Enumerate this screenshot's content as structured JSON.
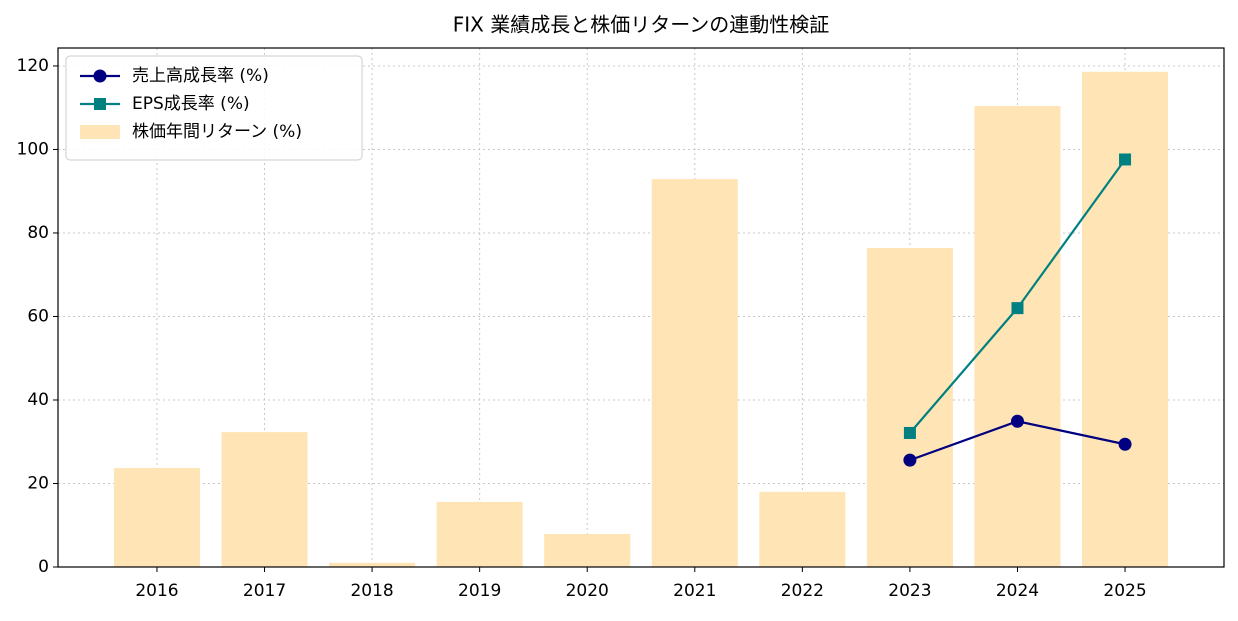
{
  "chart_data": {
    "type": "bar",
    "title": "FIX 業績成長と株価リターンの連動性検証",
    "categories": [
      "2016",
      "2017",
      "2018",
      "2019",
      "2020",
      "2021",
      "2022",
      "2023",
      "2024",
      "2025"
    ],
    "series": [
      {
        "name": "売上高成長率 (%)",
        "type": "line",
        "marker": "circle",
        "color": "#000080",
        "values": [
          null,
          null,
          null,
          null,
          null,
          null,
          null,
          25.6,
          34.9,
          29.4
        ]
      },
      {
        "name": "EPS成長率 (%)",
        "type": "line",
        "marker": "square",
        "color": "#008080",
        "values": [
          null,
          null,
          null,
          null,
          null,
          null,
          null,
          32.1,
          62.0,
          97.6
        ]
      },
      {
        "name": "株価年間リターン (%)",
        "type": "bar",
        "color": "#ffe4b5",
        "values": [
          23.7,
          32.3,
          1.0,
          15.6,
          7.9,
          92.9,
          18.0,
          76.4,
          110.4,
          118.6
        ]
      }
    ],
    "ylim": [
      0,
      124.3
    ],
    "yticks": [
      0,
      20,
      40,
      60,
      80,
      100,
      120
    ],
    "grid": true,
    "legend": "upper left"
  }
}
